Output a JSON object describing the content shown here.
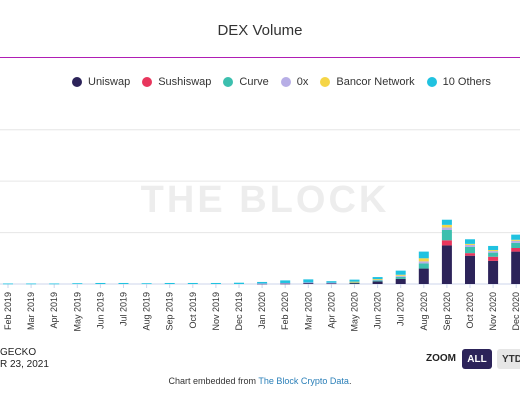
{
  "chart_data": {
    "type": "bar",
    "stacked": true,
    "title": "DEX Volume",
    "watermark": "THE BLOCK",
    "legend_position": "top",
    "categories": [
      "Feb 2019",
      "Mar 2019",
      "Apr 2019",
      "May 2019",
      "Jun 2019",
      "Jul 2019",
      "Aug 2019",
      "Sep 2019",
      "Oct 2019",
      "Nov 2019",
      "Dec 2019",
      "Jan 2020",
      "Feb 2020",
      "Mar 2020",
      "Apr 2020",
      "May 2020",
      "Jun 2020",
      "Jul 2020",
      "Aug 2020",
      "Sep 2020",
      "Oct 2020",
      "Nov 2020",
      "Dec 2020"
    ],
    "ylim": [
      0,
      35
    ],
    "gridlines": [
      10,
      20,
      30
    ],
    "series": [
      {
        "name": "Uniswap",
        "color": "#2c2359",
        "values": [
          0,
          0,
          0,
          0,
          0,
          0,
          0,
          0,
          0,
          0,
          0,
          0.05,
          0.1,
          0.2,
          0.15,
          0.2,
          0.5,
          1.0,
          3.0,
          7.5,
          5.5,
          4.5,
          6.3
        ]
      },
      {
        "name": "Sushiswap",
        "color": "#e8365d",
        "values": [
          0,
          0,
          0,
          0,
          0,
          0,
          0,
          0,
          0,
          0,
          0,
          0,
          0,
          0,
          0,
          0,
          0,
          0,
          0,
          1.0,
          0.5,
          0.8,
          0.7
        ]
      },
      {
        "name": "Curve",
        "color": "#3cbfae",
        "values": [
          0,
          0,
          0,
          0,
          0,
          0,
          0,
          0,
          0,
          0,
          0,
          0,
          0,
          0,
          0,
          0.1,
          0.2,
          0.4,
          1.0,
          2.0,
          1.2,
          0.8,
          1.0
        ]
      },
      {
        "name": "0x",
        "color": "#b7aee6",
        "values": [
          0,
          0,
          0,
          0,
          0,
          0,
          0,
          0,
          0,
          0,
          0,
          0.05,
          0.1,
          0.1,
          0.1,
          0.1,
          0.15,
          0.2,
          0.4,
          0.5,
          0.4,
          0.3,
          0.4
        ]
      },
      {
        "name": "Bancor Network",
        "color": "#f5d547",
        "values": [
          0,
          0,
          0,
          0,
          0,
          0,
          0,
          0,
          0,
          0,
          0,
          0,
          0,
          0,
          0,
          0.05,
          0.1,
          0.2,
          0.6,
          0.5,
          0.2,
          0.2,
          0.2
        ]
      },
      {
        "name": "10 Others",
        "color": "#20c2e0",
        "values": [
          0.1,
          0.1,
          0.1,
          0.15,
          0.2,
          0.2,
          0.15,
          0.2,
          0.2,
          0.2,
          0.25,
          0.3,
          0.5,
          0.6,
          0.3,
          0.4,
          0.4,
          0.8,
          1.3,
          1.0,
          0.9,
          0.8,
          1.0
        ]
      }
    ]
  },
  "source": {
    "line1": "GECKO",
    "line2": "R 23, 2021"
  },
  "zoom": {
    "label": "ZOOM",
    "all": "ALL",
    "ytd": "YTD"
  },
  "embed": {
    "text": "Chart embedded from ",
    "link": "The Block Crypto Data",
    "suffix": "."
  }
}
